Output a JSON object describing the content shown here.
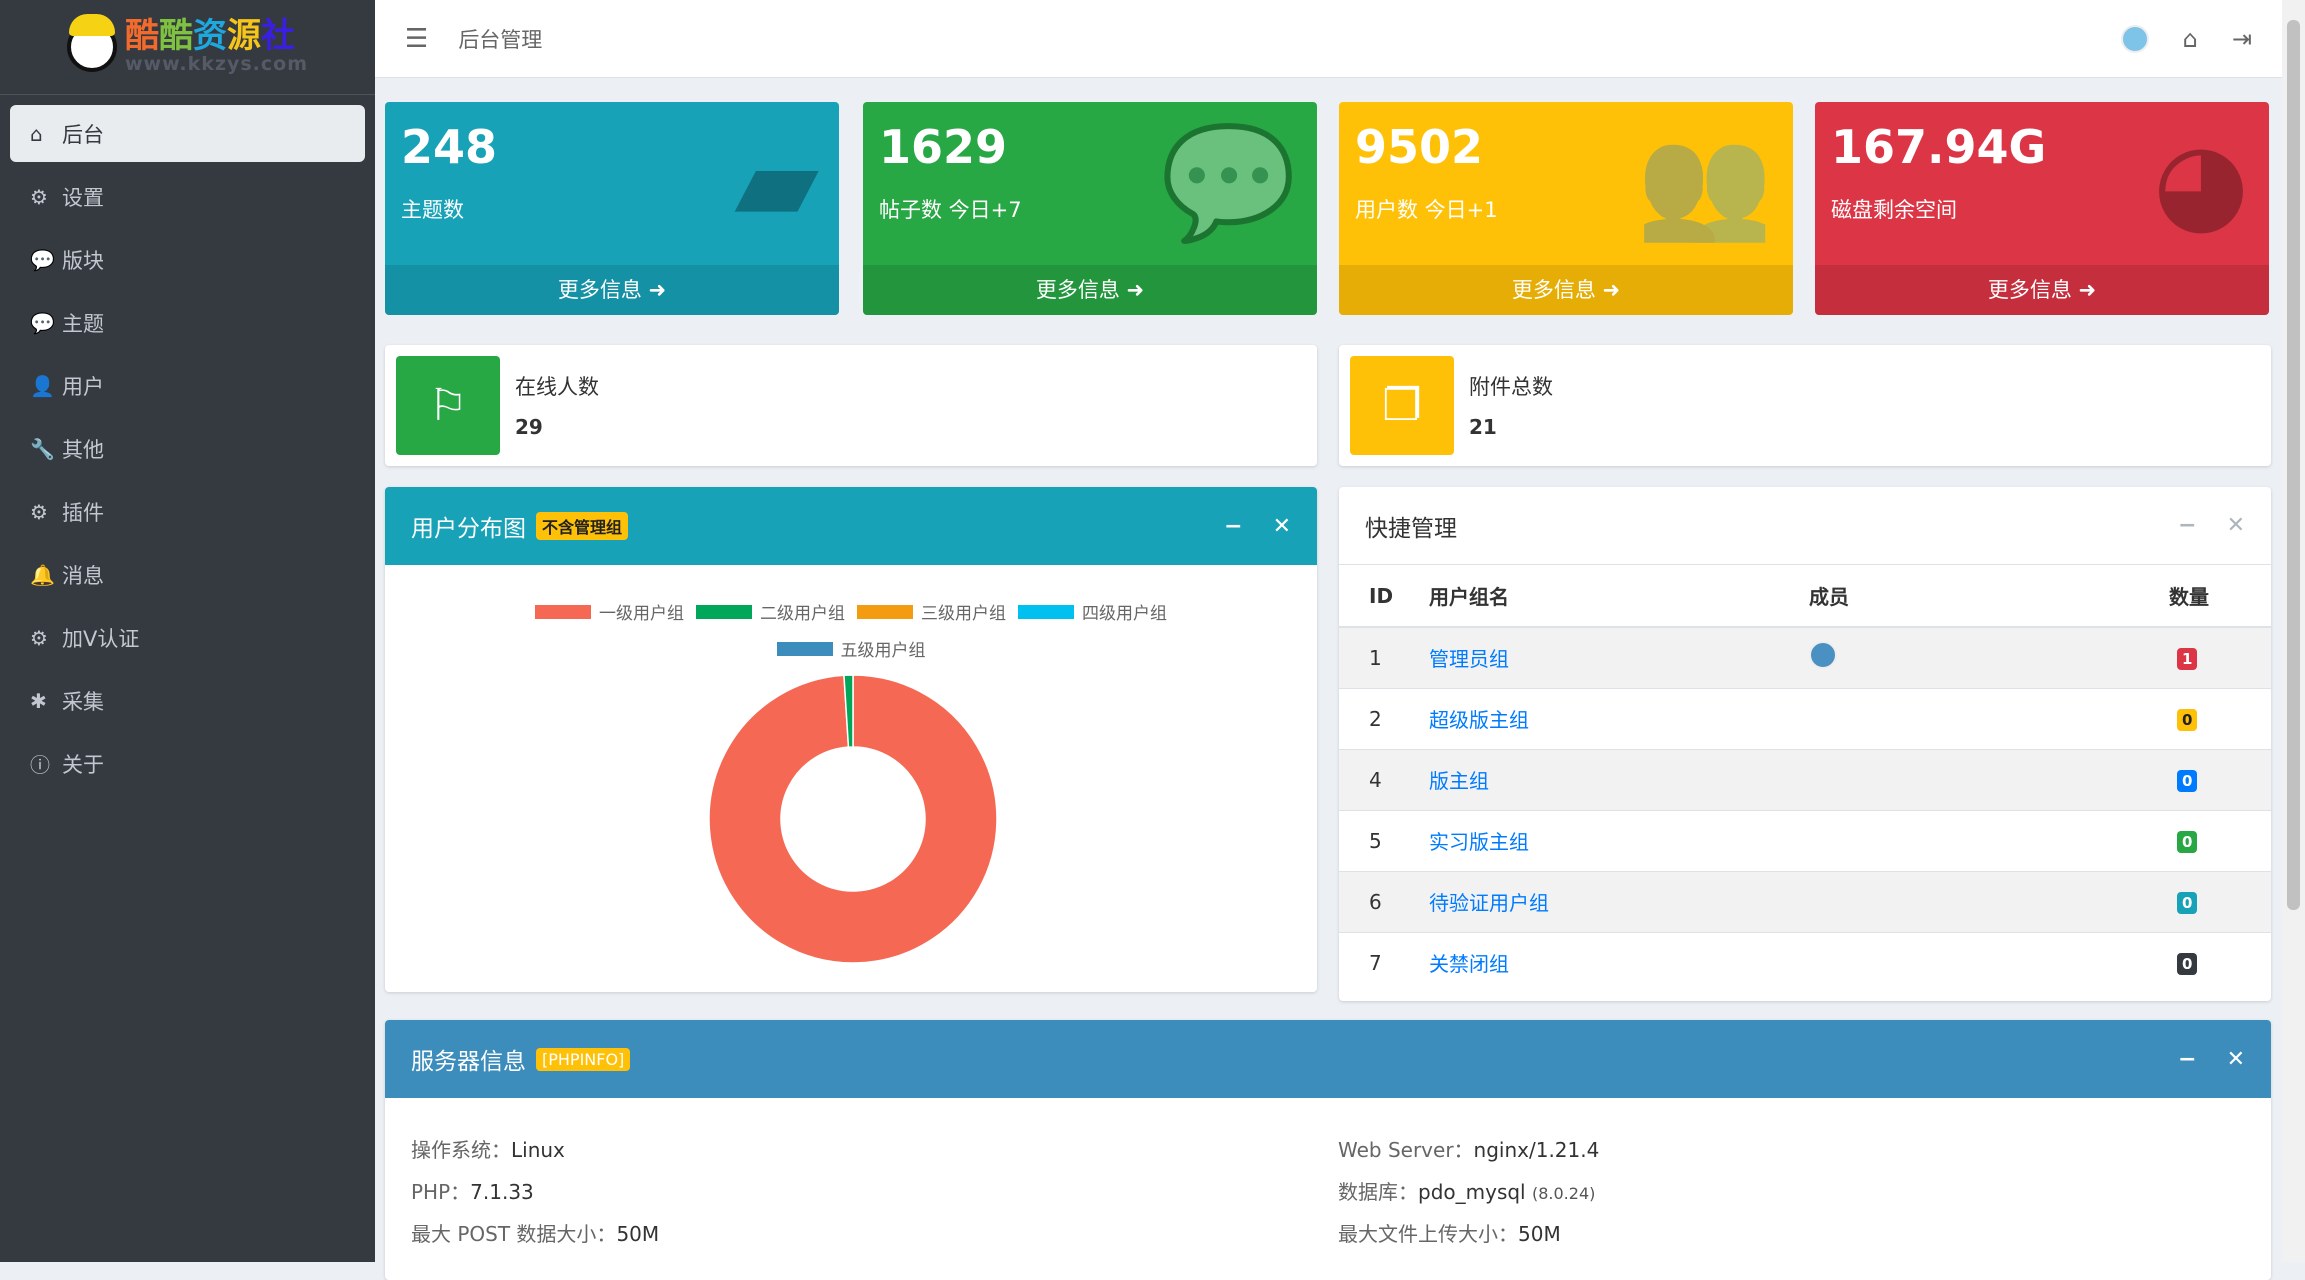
{
  "brand": {
    "name": "酷酷资源社",
    "url": "www.kkzys.com"
  },
  "sidebar": {
    "items": [
      {
        "icon": "home-icon",
        "glyph": "⌂",
        "label": "后台",
        "active": true
      },
      {
        "icon": "gear-icon",
        "glyph": "⚙",
        "label": "设置"
      },
      {
        "icon": "comment-icon",
        "glyph": "💬",
        "label": "版块"
      },
      {
        "icon": "comment-icon",
        "glyph": "💬",
        "label": "主题"
      },
      {
        "icon": "user-icon",
        "glyph": "👤",
        "label": "用户"
      },
      {
        "icon": "wrench-icon",
        "glyph": "🔧",
        "label": "其他"
      },
      {
        "icon": "cogs-icon",
        "glyph": "⚙",
        "label": "插件"
      },
      {
        "icon": "bell-icon",
        "glyph": "🔔",
        "label": "消息"
      },
      {
        "icon": "cogs-icon",
        "glyph": "⚙",
        "label": "加V认证"
      },
      {
        "icon": "bug-icon",
        "glyph": "✱",
        "label": "采集"
      },
      {
        "icon": "info-icon",
        "glyph": "ⓘ",
        "label": "关于"
      }
    ]
  },
  "header": {
    "title": "后台管理"
  },
  "stats": [
    {
      "value": "248",
      "label": "主题数",
      "more": "更多信息",
      "color": "#17a2b8",
      "icon": "comment-icon",
      "glyph": "▰"
    },
    {
      "value": "1629",
      "label": "帖子数 今日+7",
      "more": "更多信息",
      "color": "#28a745",
      "icon": "comments-icon",
      "glyph": "💬"
    },
    {
      "value": "9502",
      "label": "用户数 今日+1",
      "more": "更多信息",
      "color": "#ffc107",
      "icon": "users-icon",
      "glyph": "👥"
    },
    {
      "value": "167.94G",
      "label": "磁盘剩余空间",
      "more": "更多信息",
      "color": "#dc3545",
      "icon": "pie-chart-icon",
      "glyph": "◕"
    }
  ],
  "info": [
    {
      "label": "在线人数",
      "value": "29",
      "color": "#28a745",
      "icon": "flag-icon",
      "glyph": "⚐"
    },
    {
      "label": "附件总数",
      "value": "21",
      "color": "#ffc107",
      "icon": "copy-icon",
      "glyph": "❐"
    }
  ],
  "user_chart": {
    "title": "用户分布图",
    "badge": "不含管理组",
    "header_color": "#17a2b8"
  },
  "chart_data": {
    "type": "pie",
    "categories": [
      "一级用户组",
      "二级用户组",
      "三级用户组",
      "四级用户组",
      "五级用户组"
    ],
    "values": [
      99,
      1,
      0,
      0,
      0
    ],
    "colors": [
      "#f56954",
      "#00a65a",
      "#f39c12",
      "#00c0ef",
      "#3c8dbc"
    ],
    "donut": true,
    "legend": "top"
  },
  "quick": {
    "title": "快捷管理",
    "columns": [
      "ID",
      "用户组名",
      "成员",
      "数量"
    ],
    "rows": [
      {
        "id": "1",
        "name": "管理员组",
        "member": true,
        "count": "1",
        "color": "#dc3545"
      },
      {
        "id": "2",
        "name": "超级版主组",
        "count": "0",
        "color": "#ffc107"
      },
      {
        "id": "4",
        "name": "版主组",
        "count": "0",
        "color": "#007bff"
      },
      {
        "id": "5",
        "name": "实习版主组",
        "count": "0",
        "color": "#28a745"
      },
      {
        "id": "6",
        "name": "待验证用户组",
        "count": "0",
        "color": "#17a2b8"
      },
      {
        "id": "7",
        "name": "关禁闭组",
        "count": "0",
        "color": "#343a40"
      }
    ]
  },
  "server": {
    "title": "服务器信息",
    "badge": "[PHPINFO]",
    "header_color": "#3c8dbc",
    "os_label": "操作系统：",
    "os": "Linux",
    "php_label": "PHP：",
    "php": "7.1.33",
    "post_label": "最大 POST 数据大小：",
    "post": "50M",
    "web_label": "Web Server：",
    "web": "nginx/1.21.4",
    "db_label": "数据库：",
    "db": "pdo_mysql",
    "db_ver": "(8.0.24)",
    "upload_label": "最大文件上传大小：",
    "upload": "50M"
  }
}
